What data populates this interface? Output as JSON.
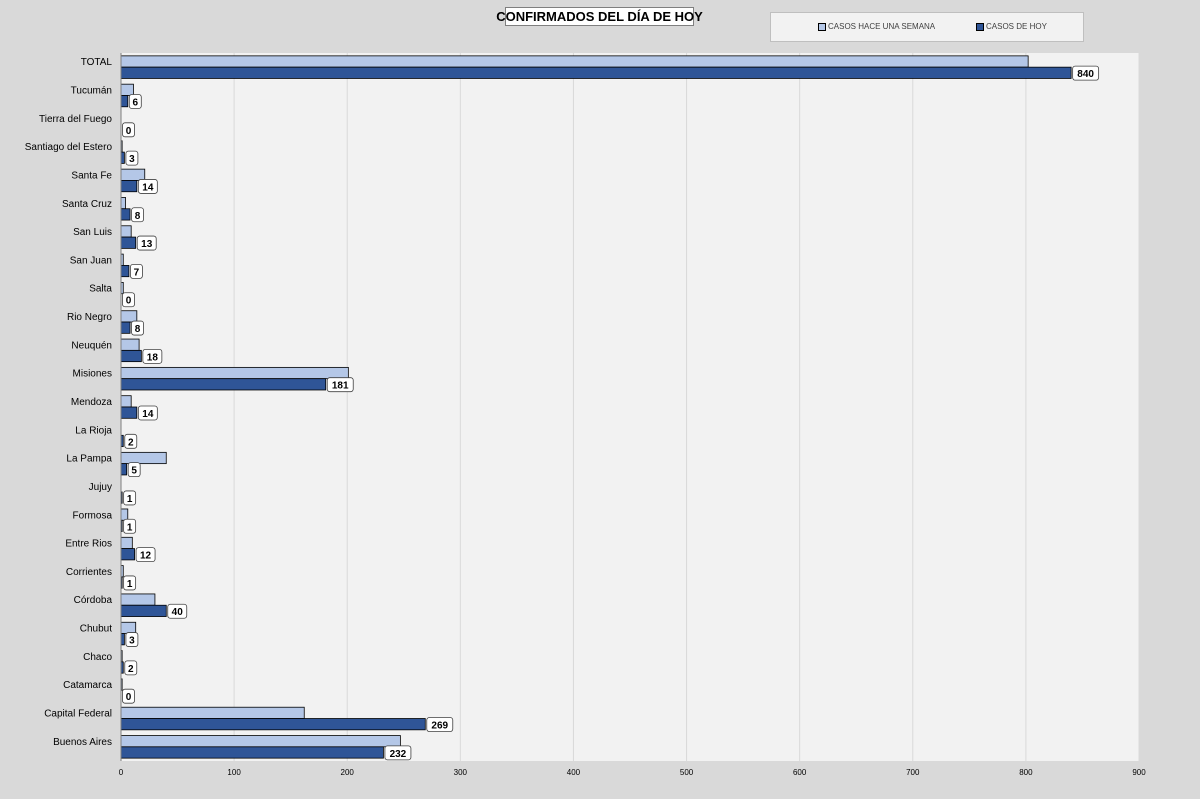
{
  "chart_data": {
    "type": "bar",
    "orientation": "horizontal",
    "title": "CONFIRMADOS DEL DÍA DE HOY",
    "categories": [
      "TOTAL",
      "Tucumán",
      "Tierra del Fuego",
      "Santiago del Estero",
      "Santa Fe",
      "Santa Cruz",
      "San Luis",
      "San Juan",
      "Salta",
      "Rio Negro",
      "Neuquén",
      "Misiones",
      "Mendoza",
      "La Rioja",
      "La Pampa",
      "Jujuy",
      "Formosa",
      "Entre Rios",
      "Corrientes",
      "Córdoba",
      "Chubut",
      "Chaco",
      "Catamarca",
      "Capital Federal",
      "Buenos Aires"
    ],
    "series": [
      {
        "name": "CASOS HACE UNA SEMANA",
        "color": "#b4c7e7",
        "values": [
          802,
          11,
          0,
          1,
          21,
          4,
          9,
          2,
          2,
          14,
          16,
          201,
          9,
          0,
          40,
          0,
          6,
          10,
          2,
          30,
          13,
          1,
          1,
          162,
          247
        ]
      },
      {
        "name": "CASOS DE HOY",
        "color": "#2f5597",
        "values": [
          840,
          6,
          0,
          3,
          14,
          8,
          13,
          7,
          0,
          8,
          18,
          181,
          14,
          2,
          5,
          1,
          1,
          12,
          1,
          40,
          3,
          2,
          0,
          269,
          232
        ]
      }
    ],
    "data_labels_series": "CASOS DE HOY",
    "xlim": [
      0,
      900
    ],
    "xticks": [
      0,
      100,
      200,
      300,
      400,
      500,
      600,
      700,
      800,
      900
    ],
    "grid": true,
    "legend_position": "top-right",
    "plot_background": "#f2f2f2",
    "page_background": "#d9d9d9",
    "gridline_color": "#d9d9d9"
  }
}
